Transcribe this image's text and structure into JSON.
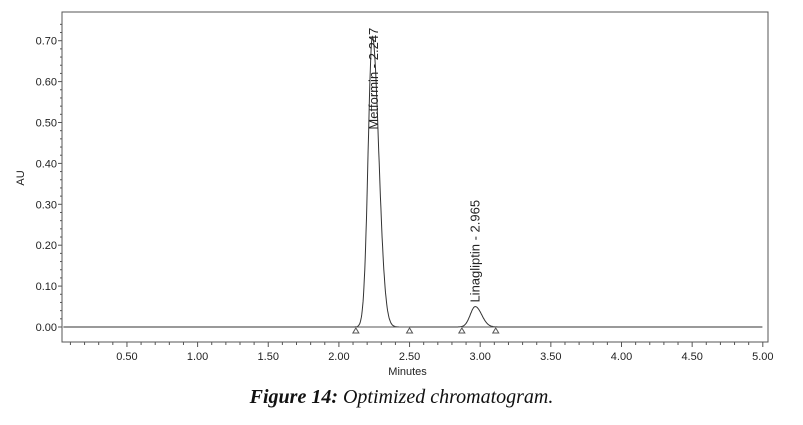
{
  "chart_data": {
    "type": "line",
    "title": "",
    "xlabel": "Minutes",
    "ylabel": "AU",
    "xlim": [
      0.04,
      5.0
    ],
    "ylim": [
      -0.025,
      0.77
    ],
    "x_ticks": [
      "0.50",
      "1.00",
      "1.50",
      "2.00",
      "2.50",
      "3.00",
      "3.50",
      "4.00",
      "4.50",
      "5.00"
    ],
    "y_ticks": [
      "0.00",
      "0.10",
      "0.20",
      "0.30",
      "0.40",
      "0.50",
      "0.60",
      "0.70"
    ],
    "peaks": [
      {
        "name": "Metformin",
        "retention_time": 2.247,
        "height": 0.71,
        "label": "Metformin - 2.247",
        "start": 2.12,
        "end": 2.5
      },
      {
        "name": "Linagliptin",
        "retention_time": 2.965,
        "height": 0.05,
        "label": "Linagliptin - 2.965",
        "start": 2.87,
        "end": 3.11
      }
    ],
    "grid": false
  },
  "caption": {
    "label": "Figure 14:",
    "text": " Optimized chromatogram."
  }
}
